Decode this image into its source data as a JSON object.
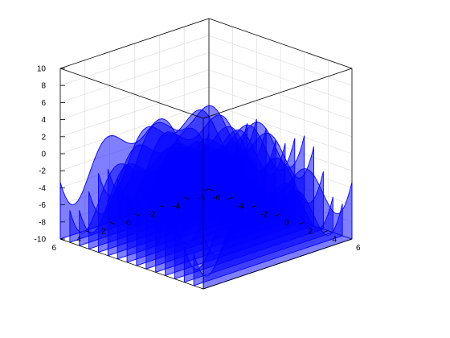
{
  "chart_data": {
    "type": "ribbon",
    "title": "",
    "xlabel": "",
    "ylabel": "",
    "zlabel": "",
    "xlim": [
      -6,
      6
    ],
    "ylim": [
      -6,
      6
    ],
    "zlim": [
      -10,
      10
    ],
    "x_ticks": [
      "-6",
      "-4",
      "-2",
      "0",
      "2",
      "4",
      "6"
    ],
    "y_ticks": [
      "-6",
      "-4",
      "-2",
      "0",
      "2",
      "4",
      "6"
    ],
    "z_ticks": [
      "-10",
      "-8",
      "-6",
      "-4",
      "-2",
      "0",
      "2",
      "4",
      "6",
      "8",
      "10"
    ],
    "grid": true,
    "ribbon_color": "#0000ff",
    "ribbon_opacity": 0.5,
    "series_x": [
      -6.0,
      -5.2,
      -4.4,
      -3.6,
      -2.8,
      -2.0,
      -1.2,
      -0.4,
      0.4,
      1.2,
      2.0,
      2.8,
      3.6,
      4.4,
      5.2,
      6.0
    ],
    "y_range": [
      -6,
      6
    ],
    "function": "x*sin(x) + y*sin(y)"
  }
}
